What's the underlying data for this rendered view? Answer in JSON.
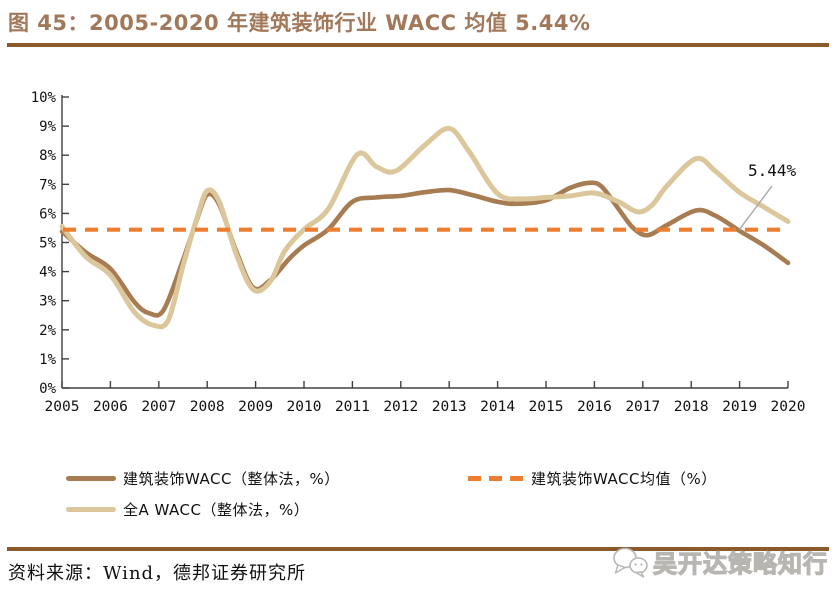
{
  "figure": {
    "title": "图 45：2005-2020 年建筑装饰行业 WACC 均值 5.44%",
    "source": "资料来源：Wind，德邦证券研究所",
    "watermark": "吴开达策略知行"
  },
  "colors": {
    "title_text": "#A1785A",
    "rule": "#8B5A2B",
    "industry_line": "#A87C52",
    "all_a_line": "#DBC79B",
    "mean_line": "#ED7D31",
    "axis": "#404040",
    "tick_label": "#111111",
    "annotation_text": "#111111",
    "annotation_leader": "#A6A6A6"
  },
  "chart_data": {
    "type": "line",
    "title": "2005-2020 年建筑装饰行业 WACC 均值 5.44%",
    "xlabel": "",
    "ylabel": "",
    "xlim": [
      2005,
      2020
    ],
    "ylim": [
      0,
      10
    ],
    "grid": false,
    "legend_position": "bottom",
    "x_ticks": [
      "2005",
      "2006",
      "2007",
      "2008",
      "2009",
      "2010",
      "2011",
      "2012",
      "2013",
      "2014",
      "2015",
      "2016",
      "2017",
      "2018",
      "2019",
      "2020"
    ],
    "y_ticks": [
      "0%",
      "1%",
      "2%",
      "3%",
      "4%",
      "5%",
      "6%",
      "7%",
      "8%",
      "9%",
      "10%"
    ],
    "mean": {
      "name": "建筑装饰WACC均值（%）",
      "value": 5.44,
      "annotation": "5.44%",
      "style": "dashed",
      "color": "#ED7D31"
    },
    "series": [
      {
        "name": "建筑装饰WACC（整体法，%）",
        "color": "#A87C52",
        "points": [
          [
            2005,
            5.38
          ],
          [
            2005.5,
            4.65
          ],
          [
            2006,
            4.1
          ],
          [
            2006.5,
            2.95
          ],
          [
            2006.8,
            2.57
          ],
          [
            2007.1,
            2.68
          ],
          [
            2007.5,
            4.4
          ],
          [
            2007.8,
            5.85
          ],
          [
            2008,
            6.65
          ],
          [
            2008.25,
            6.3
          ],
          [
            2008.6,
            4.7
          ],
          [
            2008.95,
            3.45
          ],
          [
            2009.3,
            3.7
          ],
          [
            2009.7,
            4.45
          ],
          [
            2010,
            4.9
          ],
          [
            2010.5,
            5.45
          ],
          [
            2011,
            6.4
          ],
          [
            2011.5,
            6.55
          ],
          [
            2012,
            6.6
          ],
          [
            2012.5,
            6.73
          ],
          [
            2013,
            6.8
          ],
          [
            2013.5,
            6.62
          ],
          [
            2014,
            6.4
          ],
          [
            2014.4,
            6.33
          ],
          [
            2015,
            6.45
          ],
          [
            2015.5,
            6.88
          ],
          [
            2015.9,
            7.05
          ],
          [
            2016.15,
            6.92
          ],
          [
            2016.5,
            6.15
          ],
          [
            2016.8,
            5.5
          ],
          [
            2017.1,
            5.25
          ],
          [
            2017.5,
            5.6
          ],
          [
            2018.1,
            6.1
          ],
          [
            2018.5,
            5.92
          ],
          [
            2019,
            5.4
          ],
          [
            2019.5,
            4.9
          ],
          [
            2020,
            4.3
          ]
        ]
      },
      {
        "name": "全A WACC（整体法，%）",
        "color": "#DBC79B",
        "points": [
          [
            2005,
            5.55
          ],
          [
            2005.5,
            4.5
          ],
          [
            2006,
            3.88
          ],
          [
            2006.5,
            2.6
          ],
          [
            2006.9,
            2.15
          ],
          [
            2007.2,
            2.35
          ],
          [
            2007.5,
            4.2
          ],
          [
            2007.8,
            5.9
          ],
          [
            2008,
            6.78
          ],
          [
            2008.25,
            6.4
          ],
          [
            2008.6,
            4.6
          ],
          [
            2008.95,
            3.38
          ],
          [
            2009.3,
            3.65
          ],
          [
            2009.6,
            4.7
          ],
          [
            2010,
            5.45
          ],
          [
            2010.5,
            6.15
          ],
          [
            2011.1,
            8.02
          ],
          [
            2011.5,
            7.6
          ],
          [
            2011.9,
            7.46
          ],
          [
            2012.5,
            8.35
          ],
          [
            2013,
            8.92
          ],
          [
            2013.4,
            8.15
          ],
          [
            2014,
            6.68
          ],
          [
            2014.5,
            6.5
          ],
          [
            2015,
            6.55
          ],
          [
            2015.5,
            6.6
          ],
          [
            2016,
            6.7
          ],
          [
            2016.5,
            6.4
          ],
          [
            2016.9,
            6.05
          ],
          [
            2017.2,
            6.3
          ],
          [
            2017.5,
            6.95
          ],
          [
            2018.1,
            7.88
          ],
          [
            2018.5,
            7.45
          ],
          [
            2019,
            6.72
          ],
          [
            2019.5,
            6.22
          ],
          [
            2020,
            5.72
          ]
        ]
      }
    ]
  }
}
